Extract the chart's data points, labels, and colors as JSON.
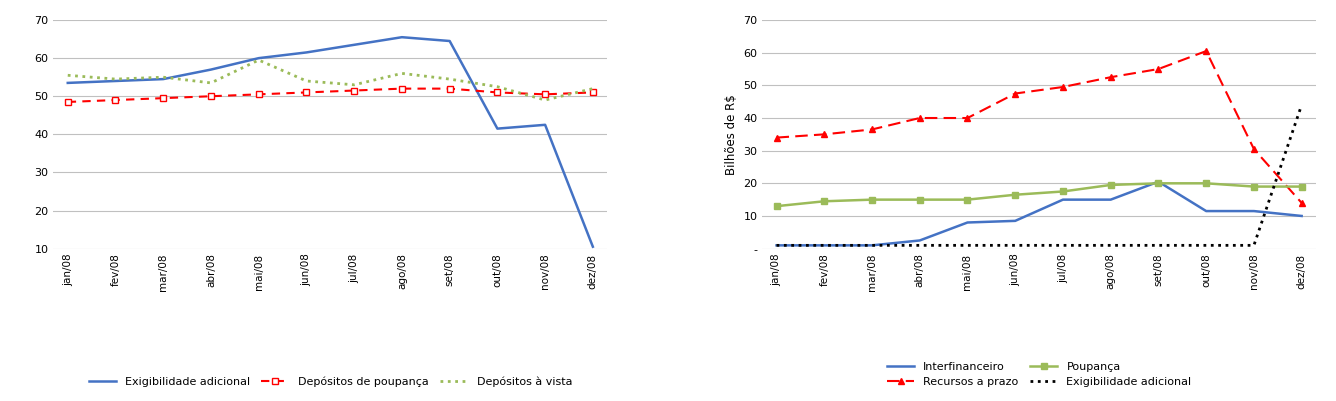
{
  "months": [
    "jan/08",
    "fev/08",
    "mar/08",
    "abr/08",
    "mai/08",
    "jun/08",
    "jul/08",
    "ago/08",
    "set/08",
    "out/08",
    "nov/08",
    "dez/08"
  ],
  "left": {
    "exigibilidade_adicional": [
      53.5,
      54.0,
      54.5,
      57.0,
      60.0,
      61.5,
      63.5,
      65.5,
      64.5,
      41.5,
      42.5,
      10.5
    ],
    "depositos_poupanca": [
      48.5,
      49.0,
      49.5,
      50.0,
      50.5,
      51.0,
      51.5,
      52.0,
      52.0,
      51.0,
      50.5,
      51.0
    ],
    "depositos_vista": [
      55.5,
      54.5,
      55.0,
      53.5,
      59.5,
      54.0,
      53.0,
      56.0,
      54.5,
      52.5,
      49.0,
      52.0
    ],
    "ylim": [
      10,
      70
    ],
    "yticks": [
      10,
      20,
      30,
      40,
      50,
      60,
      70
    ],
    "legend": [
      "Exigibilidade adicional",
      "Depósitos de poupança",
      "Depósitos à vista"
    ]
  },
  "right": {
    "interfinanceiro": [
      1.0,
      1.0,
      1.0,
      2.5,
      8.0,
      8.5,
      15.0,
      15.0,
      20.5,
      11.5,
      11.5,
      10.0
    ],
    "recursos_prazo": [
      34.0,
      35.0,
      36.5,
      40.0,
      40.0,
      47.5,
      49.5,
      52.5,
      55.0,
      60.5,
      30.5,
      14.0
    ],
    "poupanca": [
      13.0,
      14.5,
      15.0,
      15.0,
      15.0,
      16.5,
      17.5,
      19.5,
      20.0,
      20.0,
      19.0,
      19.0
    ],
    "exigibilidade_adicional": [
      1.0,
      1.0,
      1.0,
      1.0,
      1.0,
      1.0,
      1.0,
      1.0,
      1.0,
      1.0,
      1.0,
      44.0
    ],
    "ylim": [
      0,
      70
    ],
    "yticks": [
      0,
      10,
      20,
      30,
      40,
      50,
      60,
      70
    ],
    "ytick_labels": [
      "-",
      "10",
      "20",
      "30",
      "40",
      "50",
      "60",
      "70"
    ],
    "ylabel": "Bilhões de R$",
    "legend": [
      "Interfinanceiro",
      "Recursos a prazo",
      "Poupança",
      "Exigibilidade adicional"
    ]
  },
  "colors": {
    "exigibilidade_adicional_left": "#4472C4",
    "depositos_poupanca": "#FF0000",
    "depositos_vista": "#9BBB59",
    "interfinanceiro": "#4472C4",
    "recursos_prazo": "#FF0000",
    "poupanca": "#9BBB59",
    "exigibilidade_adicional_right": "#000000"
  },
  "background_color": "#FFFFFF",
  "grid_color": "#C0C0C0"
}
